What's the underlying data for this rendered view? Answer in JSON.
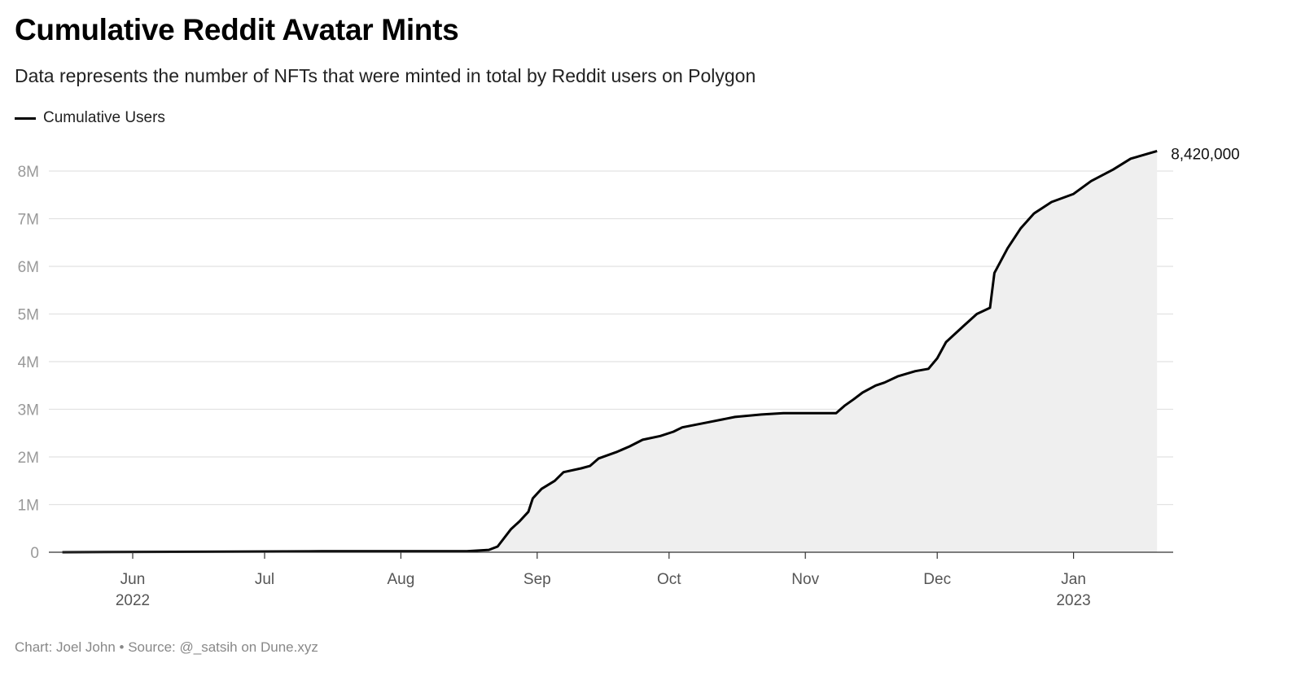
{
  "chart_data": {
    "type": "area",
    "title": "Cumulative Reddit Avatar Mints",
    "subtitle": "Data represents the number of NFTs that were minted in total by Reddit users on Polygon",
    "legend": {
      "position": "top-left",
      "entries": [
        "Cumulative Users"
      ]
    },
    "source": "Chart: Joel John • Source: @_satsih on Dune.xyz",
    "line_color": "#000000",
    "fill_color": "#efefef",
    "grid": true,
    "xlabel": "",
    "ylabel": "",
    "ylim": [
      0,
      8500000
    ],
    "y_ticks": [
      {
        "value": 0,
        "label": "0"
      },
      {
        "value": 1000000,
        "label": "1M"
      },
      {
        "value": 2000000,
        "label": "2M"
      },
      {
        "value": 3000000,
        "label": "3M"
      },
      {
        "value": 4000000,
        "label": "4M"
      },
      {
        "value": 5000000,
        "label": "5M"
      },
      {
        "value": 6000000,
        "label": "6M"
      },
      {
        "value": 7000000,
        "label": "7M"
      },
      {
        "value": 8000000,
        "label": "8M"
      }
    ],
    "x_ticks": [
      {
        "date": "2022-06-01",
        "label": "Jun",
        "sublabel": "2022"
      },
      {
        "date": "2022-07-01",
        "label": "Jul",
        "sublabel": ""
      },
      {
        "date": "2022-08-01",
        "label": "Aug",
        "sublabel": ""
      },
      {
        "date": "2022-09-01",
        "label": "Sep",
        "sublabel": ""
      },
      {
        "date": "2022-10-01",
        "label": "Oct",
        "sublabel": ""
      },
      {
        "date": "2022-11-01",
        "label": "Nov",
        "sublabel": ""
      },
      {
        "date": "2022-12-01",
        "label": "Dec",
        "sublabel": ""
      },
      {
        "date": "2023-01-01",
        "label": "Jan",
        "sublabel": "2023"
      }
    ],
    "end_label": "8,420,000",
    "series": [
      {
        "name": "Cumulative Users",
        "points": [
          [
            "2022-05-16",
            0
          ],
          [
            "2022-07-14",
            20000
          ],
          [
            "2022-08-16",
            20000
          ],
          [
            "2022-08-21",
            50000
          ],
          [
            "2022-08-23",
            120000
          ],
          [
            "2022-08-26",
            480000
          ],
          [
            "2022-08-28",
            650000
          ],
          [
            "2022-08-30",
            850000
          ],
          [
            "2022-08-31",
            1130000
          ],
          [
            "2022-09-02",
            1330000
          ],
          [
            "2022-09-05",
            1500000
          ],
          [
            "2022-09-07",
            1680000
          ],
          [
            "2022-09-11",
            1760000
          ],
          [
            "2022-09-13",
            1810000
          ],
          [
            "2022-09-15",
            1970000
          ],
          [
            "2022-09-19",
            2100000
          ],
          [
            "2022-09-22",
            2220000
          ],
          [
            "2022-09-25",
            2360000
          ],
          [
            "2022-09-29",
            2440000
          ],
          [
            "2022-10-02",
            2530000
          ],
          [
            "2022-10-04",
            2620000
          ],
          [
            "2022-10-10",
            2730000
          ],
          [
            "2022-10-16",
            2840000
          ],
          [
            "2022-10-22",
            2890000
          ],
          [
            "2022-10-27",
            2920000
          ],
          [
            "2022-11-01",
            2920000
          ],
          [
            "2022-11-08",
            2920000
          ],
          [
            "2022-11-10",
            3080000
          ],
          [
            "2022-11-12",
            3210000
          ],
          [
            "2022-11-14",
            3350000
          ],
          [
            "2022-11-17",
            3500000
          ],
          [
            "2022-11-19",
            3560000
          ],
          [
            "2022-11-22",
            3690000
          ],
          [
            "2022-11-26",
            3800000
          ],
          [
            "2022-11-29",
            3850000
          ],
          [
            "2022-12-01",
            4070000
          ],
          [
            "2022-12-03",
            4410000
          ],
          [
            "2022-12-07",
            4750000
          ],
          [
            "2022-12-10",
            5000000
          ],
          [
            "2022-12-13",
            5130000
          ],
          [
            "2022-12-14",
            5860000
          ],
          [
            "2022-12-17",
            6380000
          ],
          [
            "2022-12-20",
            6800000
          ],
          [
            "2022-12-23",
            7110000
          ],
          [
            "2022-12-27",
            7350000
          ],
          [
            "2023-01-01",
            7520000
          ],
          [
            "2023-01-05",
            7790000
          ],
          [
            "2023-01-10",
            8030000
          ],
          [
            "2023-01-14",
            8260000
          ],
          [
            "2023-01-20",
            8420000
          ]
        ]
      }
    ]
  }
}
